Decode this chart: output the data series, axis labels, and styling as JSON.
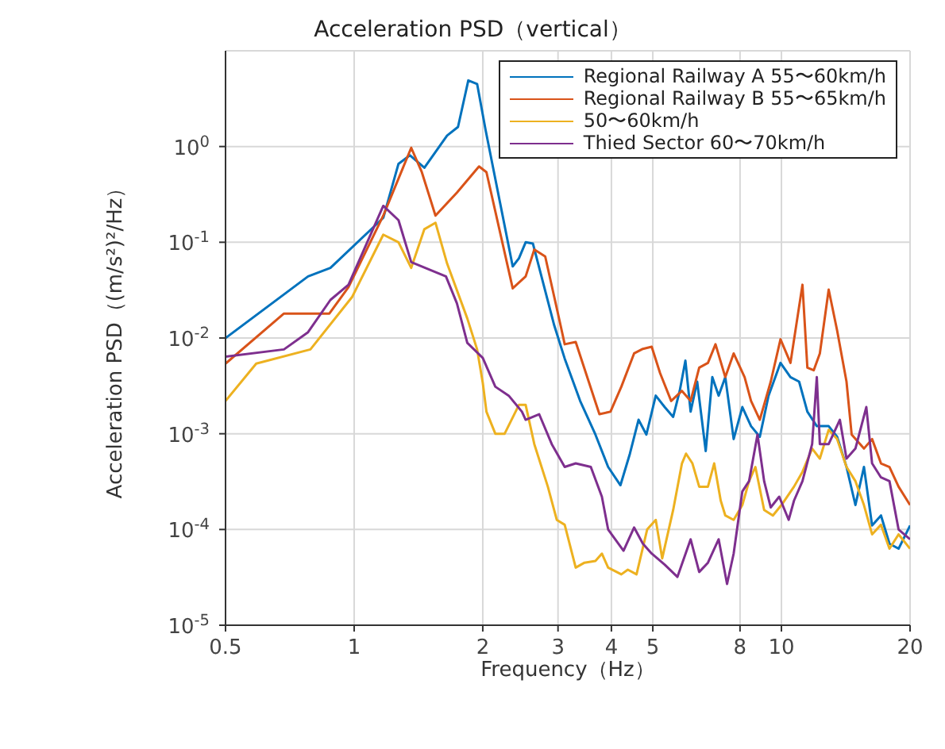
{
  "chart_data": {
    "type": "line",
    "title": "Acceleration PSD（vertical）",
    "xlabel": "Frequency（Hz）",
    "ylabel": "Acceleration PSD（(m/s²)²/Hz）",
    "log": "xy",
    "grid": true,
    "legend": "top right",
    "xlim": [
      0.5,
      20
    ],
    "xticks": [
      0.5,
      1,
      2,
      3,
      4,
      5,
      8,
      10,
      20
    ],
    "ylim": [
      1e-05,
      10
    ],
    "yticks": [
      {
        "value": 1e-05,
        "label": "10$^{-5}$"
      },
      {
        "value": 0.0001,
        "label": "10$^{-4}$"
      },
      {
        "value": 0.001,
        "label": "10$^{-3}$"
      },
      {
        "value": 0.01,
        "label": "10$^{-2}$"
      },
      {
        "value": 0.1,
        "label": "10$^{-1}$"
      },
      {
        "value": 1,
        "label": "10$^{0}$"
      }
    ],
    "series": [
      {
        "name": "Regional Railway A 55〜60km/h",
        "color": "#0072bd",
        "x": [
          0.5,
          0.78,
          0.88,
          1.17,
          1.27,
          1.35,
          1.46,
          1.65,
          1.75,
          1.85,
          1.94,
          2.03,
          2.35,
          2.43,
          2.52,
          2.62,
          2.94,
          3.11,
          3.38,
          3.67,
          3.93,
          4.2,
          4.42,
          4.63,
          4.83,
          5.08,
          5.33,
          5.58,
          5.78,
          5.96,
          6.13,
          6.35,
          6.65,
          6.89,
          7.13,
          7.39,
          7.73,
          8.1,
          8.49,
          8.9,
          9.33,
          9.95,
          10.5,
          11.0,
          11.5,
          12.1,
          12.9,
          13.5,
          14.2,
          14.9,
          15.6,
          16.3,
          17.1,
          17.9,
          18.8,
          20
        ],
        "values": [
          0.01,
          0.044,
          0.054,
          0.18,
          0.66,
          0.81,
          0.6,
          1.3,
          1.6,
          4.9,
          4.5,
          1.5,
          0.056,
          0.068,
          0.1,
          0.097,
          0.0135,
          0.0061,
          0.0022,
          0.00098,
          0.00045,
          0.00029,
          0.00062,
          0.0014,
          0.00098,
          0.0025,
          0.0019,
          0.0015,
          0.0028,
          0.0058,
          0.0017,
          0.0035,
          0.00066,
          0.0039,
          0.0025,
          0.0039,
          0.00088,
          0.0019,
          0.0012,
          0.00093,
          0.0025,
          0.0055,
          0.0039,
          0.0035,
          0.0017,
          0.0012,
          0.0012,
          0.00093,
          0.00045,
          0.00018,
          0.00045,
          0.00011,
          0.00014,
          7.1e-05,
          6.3e-05,
          0.00011
        ]
      },
      {
        "name": "Regional Railway B 55〜65km/h",
        "color": "#d95319",
        "x": [
          0.5,
          0.685,
          0.875,
          0.97,
          1.17,
          1.36,
          1.44,
          1.55,
          1.74,
          1.96,
          2.04,
          2.35,
          2.52,
          2.64,
          2.8,
          3.04,
          3.11,
          3.3,
          3.54,
          3.75,
          3.98,
          4.22,
          4.52,
          4.74,
          4.97,
          5.2,
          5.52,
          5.85,
          6.13,
          6.42,
          6.73,
          7.01,
          7.39,
          7.73,
          8.2,
          8.49,
          8.9,
          9.44,
          9.95,
          10.5,
          11.2,
          11.5,
          11.9,
          12.3,
          12.9,
          13.5,
          14.2,
          14.6,
          15.6,
          16.3,
          17.1,
          17.9,
          18.8,
          20
        ],
        "values": [
          0.0054,
          0.018,
          0.018,
          0.034,
          0.19,
          0.97,
          0.54,
          0.19,
          0.33,
          0.62,
          0.54,
          0.033,
          0.044,
          0.084,
          0.071,
          0.0137,
          0.0086,
          0.0091,
          0.0035,
          0.0016,
          0.0017,
          0.0031,
          0.0069,
          0.0077,
          0.0081,
          0.0043,
          0.0022,
          0.0028,
          0.0022,
          0.0049,
          0.0055,
          0.0086,
          0.0039,
          0.0069,
          0.0039,
          0.0022,
          0.0014,
          0.0035,
          0.0097,
          0.0055,
          0.036,
          0.0049,
          0.0046,
          0.0069,
          0.032,
          0.012,
          0.0035,
          0.00098,
          0.0007,
          0.00088,
          0.00049,
          0.00045,
          0.00028,
          0.00018
        ]
      },
      {
        "name": "50〜60km/h",
        "color": "#edb120",
        "x": [
          0.5,
          0.59,
          0.79,
          0.99,
          1.17,
          1.27,
          1.36,
          1.46,
          1.55,
          1.65,
          1.84,
          1.94,
          2.0,
          2.04,
          2.14,
          2.25,
          2.43,
          2.52,
          2.64,
          2.84,
          2.98,
          3.11,
          3.3,
          3.46,
          3.67,
          3.8,
          3.93,
          4.22,
          4.37,
          4.58,
          4.85,
          5.08,
          5.26,
          5.58,
          5.85,
          5.98,
          6.19,
          6.42,
          6.73,
          6.96,
          7.21,
          7.39,
          7.73,
          8.1,
          8.4,
          8.69,
          9.11,
          9.55,
          10.0,
          10.7,
          11.2,
          11.8,
          12.3,
          12.9,
          13.5,
          14.2,
          14.9,
          15.6,
          16.3,
          17.1,
          17.9,
          18.8,
          20
        ],
        "values": [
          0.0022,
          0.0054,
          0.0076,
          0.027,
          0.12,
          0.1,
          0.054,
          0.137,
          0.16,
          0.06,
          0.016,
          0.0076,
          0.0034,
          0.0017,
          0.001,
          0.001,
          0.002,
          0.002,
          0.00078,
          0.00028,
          0.000126,
          0.000112,
          4e-05,
          4.5e-05,
          4.7e-05,
          5.6e-05,
          4e-05,
          3.4e-05,
          3.8e-05,
          3.4e-05,
          0.0001,
          0.000126,
          5e-05,
          0.00016,
          0.00049,
          0.00062,
          0.00049,
          0.00028,
          0.00028,
          0.00049,
          0.0002,
          0.00014,
          0.000126,
          0.00018,
          0.00032,
          0.00045,
          0.00016,
          0.00014,
          0.00018,
          0.00028,
          0.0004,
          0.0007,
          0.00055,
          0.0011,
          0.00088,
          0.00045,
          0.00032,
          0.00018,
          8.9e-05,
          0.000112,
          6.3e-05,
          8.9e-05,
          6.3e-05
        ]
      },
      {
        "name": "Thied Sector 60〜70km/h",
        "color": "#7e2f8e",
        "x": [
          0.5,
          0.685,
          0.78,
          0.88,
          0.97,
          1.17,
          1.27,
          1.36,
          1.64,
          1.74,
          1.84,
          2.0,
          2.14,
          2.3,
          2.47,
          2.52,
          2.71,
          2.9,
          3.11,
          3.3,
          3.58,
          3.8,
          3.93,
          4.27,
          4.52,
          4.74,
          4.97,
          5.33,
          5.71,
          6.13,
          6.42,
          6.73,
          7.13,
          7.46,
          7.73,
          8.1,
          8.4,
          8.79,
          9.11,
          9.44,
          9.88,
          10.4,
          10.7,
          11.2,
          11.8,
          12.1,
          12.3,
          12.9,
          13.7,
          14.2,
          14.9,
          15.8,
          16.3,
          17.1,
          17.9,
          18.8,
          20
        ],
        "values": [
          0.0064,
          0.0076,
          0.0115,
          0.025,
          0.036,
          0.24,
          0.17,
          0.062,
          0.044,
          0.023,
          0.0089,
          0.0062,
          0.0031,
          0.0025,
          0.0017,
          0.0014,
          0.0016,
          0.00078,
          0.00045,
          0.00049,
          0.00045,
          0.00022,
          0.0001,
          6e-05,
          0.000105,
          7.1e-05,
          5.6e-05,
          4.3e-05,
          3.2e-05,
          7.9e-05,
          3.6e-05,
          4.5e-05,
          7.9e-05,
          2.7e-05,
          5.6e-05,
          0.00025,
          0.00032,
          0.00098,
          0.00032,
          0.00017,
          0.00022,
          0.000126,
          0.0002,
          0.00032,
          0.00078,
          0.0039,
          0.00078,
          0.00078,
          0.0014,
          0.00055,
          0.0007,
          0.0019,
          0.00049,
          0.00035,
          0.00032,
          0.0001,
          7.9e-05
        ]
      }
    ]
  }
}
